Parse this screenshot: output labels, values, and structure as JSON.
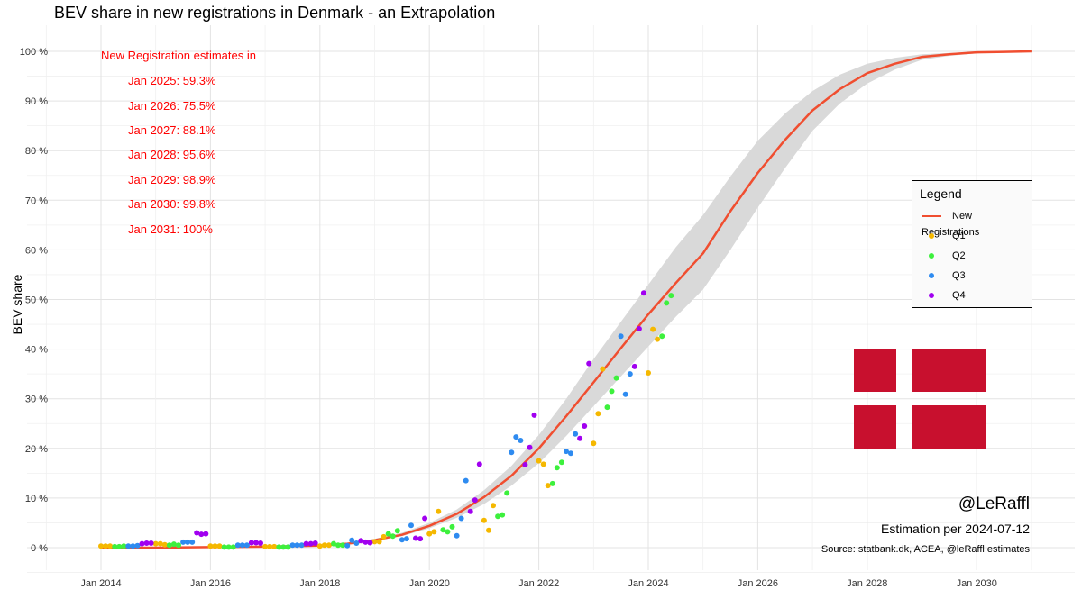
{
  "title": "BEV share in new registrations in Denmark - an Extrapolation",
  "colors": {
    "curve": "#f04e30",
    "band": "#d9d9d9",
    "q1": "#f5b800",
    "q2": "#3df03d",
    "q3": "#2e8bf0",
    "q4": "#a100f0",
    "annotation": "#ff0000",
    "flag_red": "#c8102e"
  },
  "estimates": {
    "heading": "New Registration estimates in",
    "lines": [
      "Jan 2025: 59.3%",
      "Jan 2026: 75.5%",
      "Jan 2027: 88.1%",
      "Jan 2028: 95.6%",
      "Jan 2029: 98.9%",
      "Jan 2030: 99.8%",
      "Jan 2031: 100%"
    ]
  },
  "legend": {
    "title": "Legend",
    "items": [
      "New Registrations",
      "Q1",
      "Q2",
      "Q3",
      "Q4"
    ]
  },
  "credits": {
    "handle": "@LeRaffl",
    "estimation": "Estimation per 2024-07-12",
    "source": "Source: statbank.dk, ACEA, @leRaffl estimates"
  },
  "icons": {
    "flag": "denmark-flag-icon"
  },
  "chart_data": {
    "type": "scatter",
    "ylabel": "BEV share",
    "xlabel": "",
    "x_ticks": [
      "Jan 2014",
      "Jan 2016",
      "Jan 2018",
      "Jan 2020",
      "Jan 2022",
      "Jan 2024",
      "Jan 2026",
      "Jan 2028",
      "Jan 2030"
    ],
    "y_ticks": [
      "0 %",
      "10 %",
      "20 %",
      "30 %",
      "40 %",
      "50 %",
      "60 %",
      "70 %",
      "80 %",
      "90 %",
      "100 %"
    ],
    "xlim": [
      "2013-07",
      "2031-02"
    ],
    "ylim": [
      -4,
      102
    ],
    "grid": true,
    "legend_position": "right",
    "series": [
      {
        "name": "New Registrations",
        "type": "line",
        "x": [
          "2014-01",
          "2015-01",
          "2016-01",
          "2017-01",
          "2018-01",
          "2018-07",
          "2019-01",
          "2019-07",
          "2020-01",
          "2020-07",
          "2021-01",
          "2021-07",
          "2022-01",
          "2022-07",
          "2023-01",
          "2023-07",
          "2024-01",
          "2024-07",
          "2025-01",
          "2025-07",
          "2026-01",
          "2026-07",
          "2027-01",
          "2027-07",
          "2028-01",
          "2028-07",
          "2029-01",
          "2029-07",
          "2030-01",
          "2030-07",
          "2031-01"
        ],
        "y": [
          0.0,
          0.0,
          0.1,
          0.2,
          0.4,
          0.8,
          1.5,
          2.6,
          4.4,
          6.8,
          10.2,
          14.5,
          20.0,
          26.5,
          33.3,
          40.2,
          47.0,
          53.3,
          59.3,
          67.8,
          75.5,
          82.2,
          88.1,
          92.4,
          95.6,
          97.5,
          98.9,
          99.4,
          99.8,
          99.9,
          100.0
        ],
        "lower": [
          0.0,
          0.0,
          0.1,
          0.2,
          0.4,
          0.7,
          1.3,
          2.3,
          3.9,
          6.0,
          8.8,
          12.5,
          17.0,
          22.5,
          28.5,
          34.5,
          40.5,
          46.5,
          52.0,
          60.0,
          68.5,
          76.5,
          84.0,
          89.5,
          93.5,
          96.3,
          98.3,
          99.1,
          99.6,
          99.9,
          100.0
        ],
        "upper": [
          0.0,
          0.0,
          0.1,
          0.2,
          0.4,
          0.9,
          1.8,
          3.0,
          5.0,
          7.7,
          11.6,
          16.5,
          22.7,
          30.0,
          38.0,
          45.5,
          53.0,
          60.5,
          67.0,
          74.8,
          82.0,
          87.5,
          92.0,
          95.3,
          97.5,
          98.7,
          99.4,
          99.7,
          99.9,
          100.0,
          100.0
        ]
      },
      {
        "name": "Q1",
        "type": "scatter",
        "x": [
          "2014-01",
          "2014-02",
          "2014-03",
          "2015-01",
          "2015-02",
          "2015-03",
          "2016-01",
          "2016-02",
          "2016-03",
          "2017-01",
          "2017-02",
          "2017-03",
          "2018-01",
          "2018-02",
          "2018-03",
          "2019-01",
          "2019-02",
          "2019-03",
          "2020-01",
          "2020-02",
          "2020-03",
          "2021-01",
          "2021-02",
          "2021-03",
          "2022-01",
          "2022-02",
          "2022-03",
          "2023-01",
          "2023-02",
          "2023-03",
          "2024-01",
          "2024-02",
          "2024-03"
        ],
        "y": [
          0.3,
          0.3,
          0.3,
          0.8,
          0.8,
          0.6,
          0.3,
          0.3,
          0.3,
          0.2,
          0.2,
          0.2,
          0.3,
          0.5,
          0.5,
          1.2,
          1.2,
          2.2,
          2.8,
          3.2,
          7.3,
          5.5,
          3.5,
          8.5,
          17.5,
          16.8,
          12.5,
          21.0,
          27.0,
          36.0,
          35.2,
          44.0,
          42.0
        ]
      },
      {
        "name": "Q2",
        "type": "scatter",
        "x": [
          "2014-04",
          "2014-05",
          "2014-06",
          "2015-04",
          "2015-05",
          "2015-06",
          "2016-04",
          "2016-05",
          "2016-06",
          "2017-04",
          "2017-05",
          "2017-06",
          "2018-04",
          "2018-05",
          "2018-06",
          "2019-04",
          "2019-05",
          "2019-06",
          "2020-04",
          "2020-05",
          "2020-06",
          "2021-04",
          "2021-05",
          "2021-06",
          "2022-04",
          "2022-05",
          "2022-06",
          "2023-04",
          "2023-05",
          "2023-06",
          "2024-04",
          "2024-05",
          "2024-06"
        ],
        "y": [
          0.2,
          0.2,
          0.3,
          0.5,
          0.7,
          0.5,
          0.1,
          0.1,
          0.1,
          0.1,
          0.1,
          0.1,
          0.8,
          0.5,
          0.5,
          2.8,
          2.3,
          3.4,
          3.6,
          3.2,
          4.2,
          6.3,
          6.6,
          11.0,
          12.9,
          16.1,
          17.2,
          28.3,
          31.5,
          34.2,
          42.6,
          49.3,
          50.8
        ]
      },
      {
        "name": "Q3",
        "type": "scatter",
        "x": [
          "2014-07",
          "2014-08",
          "2014-09",
          "2015-07",
          "2015-08",
          "2015-09",
          "2016-07",
          "2016-08",
          "2016-09",
          "2017-07",
          "2017-08",
          "2017-09",
          "2018-07",
          "2018-08",
          "2018-09",
          "2019-07",
          "2019-08",
          "2019-09",
          "2020-07",
          "2020-08",
          "2020-09",
          "2021-07",
          "2021-08",
          "2021-09",
          "2022-07",
          "2022-08",
          "2022-09",
          "2023-07",
          "2023-08",
          "2023-09"
        ],
        "y": [
          0.3,
          0.3,
          0.4,
          1.1,
          1.1,
          1.1,
          0.5,
          0.5,
          0.5,
          0.5,
          0.5,
          0.5,
          0.4,
          1.5,
          0.9,
          1.6,
          1.8,
          4.5,
          2.4,
          5.9,
          13.5,
          19.2,
          22.3,
          21.6,
          19.4,
          19.0,
          22.9,
          42.6,
          30.9,
          35.0
        ]
      },
      {
        "name": "Q4",
        "type": "scatter",
        "x": [
          "2014-10",
          "2014-11",
          "2014-12",
          "2015-10",
          "2015-11",
          "2015-12",
          "2016-10",
          "2016-11",
          "2016-12",
          "2017-10",
          "2017-11",
          "2017-12",
          "2018-10",
          "2018-11",
          "2018-12",
          "2019-10",
          "2019-11",
          "2019-12",
          "2020-10",
          "2020-11",
          "2020-12",
          "2021-10",
          "2021-11",
          "2021-12",
          "2022-10",
          "2022-11",
          "2022-12",
          "2023-10",
          "2023-11",
          "2023-12"
        ],
        "y": [
          0.8,
          0.9,
          0.9,
          3.0,
          2.7,
          2.8,
          1.0,
          1.0,
          0.9,
          0.8,
          0.8,
          0.9,
          1.4,
          1.1,
          1.0,
          1.9,
          1.8,
          5.9,
          7.3,
          9.6,
          16.8,
          16.7,
          20.2,
          26.7,
          22.0,
          24.5,
          37.1,
          36.5,
          44.1,
          51.3
        ]
      }
    ]
  }
}
